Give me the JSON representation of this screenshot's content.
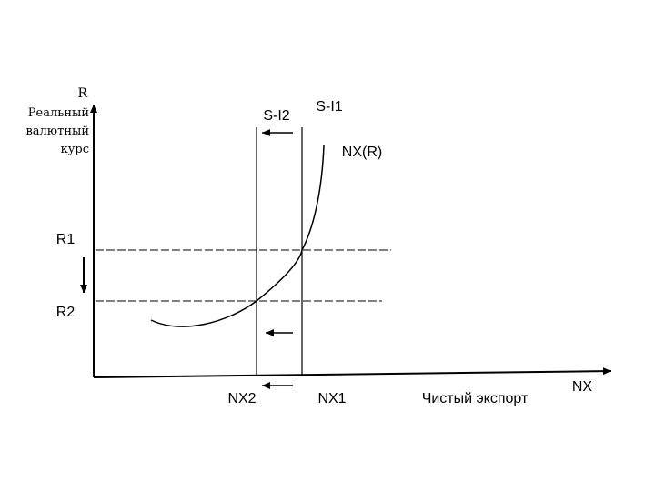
{
  "y_axis": {
    "symbol": "R",
    "label_lines": [
      "Реальный",
      "валютный",
      "курс"
    ]
  },
  "x_axis": {
    "symbol": "NX",
    "label": "Чистый экспорт"
  },
  "curve_label": "NX(R)",
  "lines": {
    "s_i1": "S-I1",
    "s_i2": "S-I2"
  },
  "levels": {
    "r1": "R1",
    "r2": "R2"
  },
  "ticks": {
    "nx1": "NX1",
    "nx2": "NX2"
  },
  "colors": {
    "ink": "#000000",
    "background": "#ffffff"
  }
}
